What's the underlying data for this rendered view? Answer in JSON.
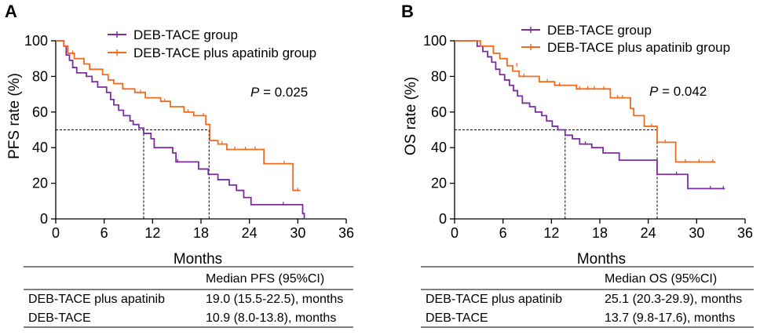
{
  "chart_data": [
    {
      "type": "line",
      "subtype": "kaplan-meier",
      "panel": "A",
      "xlabel": "Months",
      "ylabel": "PFS rate (%)",
      "xlim": [
        0,
        36
      ],
      "ylim": [
        0,
        100
      ],
      "xticks": [
        0,
        6,
        12,
        18,
        24,
        30,
        36
      ],
      "yticks": [
        0,
        20,
        40,
        60,
        80,
        100
      ],
      "xtick_labels": [
        "0",
        "6",
        "12",
        "18",
        "24",
        "30",
        "36"
      ],
      "ytick_labels": [
        "0",
        "20",
        "40",
        "60",
        "80",
        "100"
      ],
      "p_value": {
        "label": "P",
        "text": " = 0.025"
      },
      "legend": {
        "placement": "top-center"
      },
      "median_line_y": 50,
      "series": [
        {
          "name": "DEB-TACE group",
          "color": "#7a2ea0",
          "steps": [
            [
              0,
              100
            ],
            [
              1,
              97
            ],
            [
              1.3,
              92
            ],
            [
              1.7,
              89
            ],
            [
              2.1,
              85
            ],
            [
              2.6,
              82
            ],
            [
              3.8,
              80
            ],
            [
              4.5,
              77
            ],
            [
              5.2,
              74
            ],
            [
              6.3,
              71
            ],
            [
              6.8,
              67
            ],
            [
              7.2,
              64
            ],
            [
              7.8,
              61
            ],
            [
              8.4,
              58
            ],
            [
              9.2,
              55
            ],
            [
              9.6,
              53
            ],
            [
              10.3,
              51
            ],
            [
              10.9,
              48
            ],
            [
              11.8,
              45
            ],
            [
              12.2,
              40
            ],
            [
              14.5,
              37
            ],
            [
              14.9,
              32
            ],
            [
              17.7,
              28
            ],
            [
              18.9,
              25
            ],
            [
              20.1,
              22
            ],
            [
              21.5,
              19
            ],
            [
              22.4,
              16
            ],
            [
              23.3,
              12
            ],
            [
              24.2,
              8
            ],
            [
              27.2,
              8
            ],
            [
              30.6,
              3
            ],
            [
              30.8,
              0
            ]
          ],
          "end": 30.8,
          "censored": [
            [
              15.1,
              32
            ],
            [
              28.2,
              8
            ]
          ]
        },
        {
          "name": "DEB-TACE plus apatinib group",
          "color": "#f26b1d",
          "steps": [
            [
              0,
              100
            ],
            [
              1,
              97
            ],
            [
              1.5,
              93
            ],
            [
              2.3,
              90
            ],
            [
              3.5,
              87
            ],
            [
              4.2,
              84
            ],
            [
              5.8,
              81
            ],
            [
              6.5,
              78
            ],
            [
              7.2,
              76
            ],
            [
              8.3,
              73
            ],
            [
              9.8,
              71
            ],
            [
              11.1,
              68
            ],
            [
              13.0,
              66
            ],
            [
              14.2,
              63
            ],
            [
              15.9,
              60
            ],
            [
              17.1,
              58
            ],
            [
              18.6,
              53
            ],
            [
              19.1,
              44
            ],
            [
              20.1,
              42
            ],
            [
              21.2,
              39
            ],
            [
              25.8,
              31
            ],
            [
              29.4,
              16
            ]
          ],
          "end": 30.3,
          "censored": [
            [
              2.1,
              93
            ],
            [
              10.5,
              71
            ],
            [
              13.5,
              66
            ],
            [
              16.4,
              60
            ],
            [
              18.3,
              58
            ],
            [
              20.6,
              42
            ],
            [
              22.2,
              39
            ],
            [
              23.5,
              39
            ],
            [
              24.7,
              39
            ],
            [
              28.3,
              31
            ],
            [
              30.0,
              16
            ]
          ]
        }
      ],
      "medians": [
        {
          "label": "DEB-TACE",
          "value": 10.9
        },
        {
          "label": "DEB-TACE plus apatinib",
          "value": 19.0
        }
      ]
    },
    {
      "type": "line",
      "subtype": "kaplan-meier",
      "panel": "B",
      "xlabel": "Months",
      "ylabel": "OS rate (%)",
      "xlim": [
        0,
        36
      ],
      "ylim": [
        0,
        100
      ],
      "xticks": [
        0,
        6,
        12,
        18,
        24,
        30,
        36
      ],
      "yticks": [
        0,
        20,
        40,
        60,
        80,
        100
      ],
      "xtick_labels": [
        "0",
        "6",
        "12",
        "18",
        "24",
        "30",
        "36"
      ],
      "ytick_labels": [
        "0",
        "20",
        "40",
        "60",
        "80",
        "100"
      ],
      "p_value": {
        "label": "P",
        "text": " = 0.042"
      },
      "legend": {
        "placement": "top-center"
      },
      "median_line_y": 50,
      "series": [
        {
          "name": "DEB-TACE group",
          "color": "#7a2ea0",
          "steps": [
            [
              0,
              100
            ],
            [
              2.8,
              97
            ],
            [
              3.5,
              94
            ],
            [
              4.1,
              91
            ],
            [
              4.6,
              88
            ],
            [
              5.1,
              84
            ],
            [
              5.6,
              81
            ],
            [
              6.2,
              78
            ],
            [
              6.8,
              75
            ],
            [
              7.3,
              72
            ],
            [
              7.8,
              69
            ],
            [
              8.4,
              65
            ],
            [
              9.3,
              63
            ],
            [
              10.0,
              60
            ],
            [
              10.8,
              58
            ],
            [
              11.4,
              55
            ],
            [
              12.1,
              52
            ],
            [
              12.8,
              50
            ],
            [
              13.7,
              47
            ],
            [
              14.6,
              45
            ],
            [
              15.5,
              42
            ],
            [
              17.0,
              40
            ],
            [
              18.4,
              37
            ],
            [
              20.4,
              33
            ],
            [
              23.5,
              33
            ],
            [
              25.1,
              25
            ],
            [
              28.9,
              17
            ]
          ],
          "end": 33.5,
          "censored": [
            [
              16.2,
              42
            ],
            [
              27.5,
              25
            ],
            [
              31.7,
              17
            ],
            [
              33.3,
              17
            ]
          ]
        },
        {
          "name": "DEB-TACE plus apatinib group",
          "color": "#f26b1d",
          "steps": [
            [
              0,
              100
            ],
            [
              3.2,
              97
            ],
            [
              4.8,
              93
            ],
            [
              5.6,
              90
            ],
            [
              6.5,
              86
            ],
            [
              7.2,
              83
            ],
            [
              8.0,
              80
            ],
            [
              10.5,
              77
            ],
            [
              12.4,
              75
            ],
            [
              15.1,
              73
            ],
            [
              19.3,
              68
            ],
            [
              21.8,
              62
            ],
            [
              22.2,
              58
            ],
            [
              23.5,
              52
            ],
            [
              25.1,
              43
            ],
            [
              27.4,
              32
            ]
          ],
          "end": 32.3,
          "censored": [
            [
              7.7,
              86
            ],
            [
              8.6,
              80
            ],
            [
              11.5,
              77
            ],
            [
              13.0,
              75
            ],
            [
              15.5,
              73
            ],
            [
              16.5,
              73
            ],
            [
              17.3,
              73
            ],
            [
              18.5,
              73
            ],
            [
              20.2,
              68
            ],
            [
              20.8,
              68
            ],
            [
              24.4,
              52
            ],
            [
              26.1,
              43
            ],
            [
              28.6,
              32
            ],
            [
              30.3,
              32
            ],
            [
              32.0,
              32
            ]
          ]
        }
      ],
      "medians": [
        {
          "label": "DEB-TACE",
          "value": 13.7
        },
        {
          "label": "DEB-TACE plus apatinib",
          "value": 25.1
        }
      ]
    }
  ],
  "tables": [
    {
      "header": "Median PFS (95%CI)",
      "rows": [
        {
          "label": "DEB-TACE plus apatinib",
          "value": "19.0 (15.5-22.5), months"
        },
        {
          "label": "DEB-TACE",
          "value": "10.9 (8.0-13.8), months"
        }
      ]
    },
    {
      "header": "Median OS (95%CI)",
      "rows": [
        {
          "label": "DEB-TACE plus apatinib",
          "value": "25.1 (20.3-29.9), months"
        },
        {
          "label": "DEB-TACE",
          "value": "13.7 (9.8-17.6), months"
        }
      ]
    }
  ]
}
